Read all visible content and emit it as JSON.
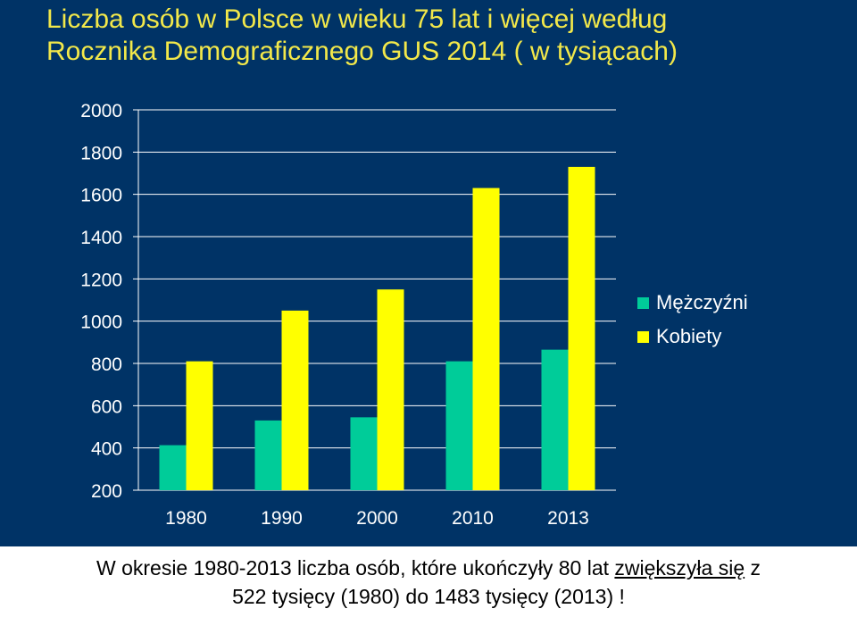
{
  "title": {
    "line1": "Liczba osób w Polsce w wieku 75 lat i więcej według",
    "line2": "Rocznika Demograficznego GUS 2014 ( w tysiącach)"
  },
  "colors": {
    "background": "#003366",
    "title": "#f2e84a",
    "men": "#00cc99",
    "women": "#ffff00",
    "axis_text": "#ffffff",
    "gridline": "#ffffff"
  },
  "chart_data": {
    "type": "bar",
    "title": "Liczba osób w Polsce w wieku 75 lat i więcej według Rocznika Demograficznego GUS 2014 ( w tysiącach)",
    "categories": [
      "1980",
      "1990",
      "2000",
      "2010",
      "2013"
    ],
    "series": [
      {
        "name": "Mężczyźni",
        "values": [
          413,
          530,
          545,
          810,
          865
        ]
      },
      {
        "name": "Kobiety",
        "values": [
          810,
          1050,
          1150,
          1630,
          1730
        ]
      }
    ],
    "ylim": [
      200,
      2000
    ],
    "yticks": [
      "200",
      "400",
      "600",
      "800",
      "1000",
      "1200",
      "1400",
      "1600",
      "1800",
      "2000"
    ],
    "grid": true,
    "legend_position": "right",
    "xlabel": "",
    "ylabel": ""
  },
  "caption": {
    "line1_part1": "W okresie 1980-2013 liczba osób, które ukończyły 80 lat ",
    "line1_underlined": "zwiększyła się",
    "line1_part2": " z",
    "line2": "522 tysięcy (1980) do 1483 tysięcy (2013) !"
  }
}
